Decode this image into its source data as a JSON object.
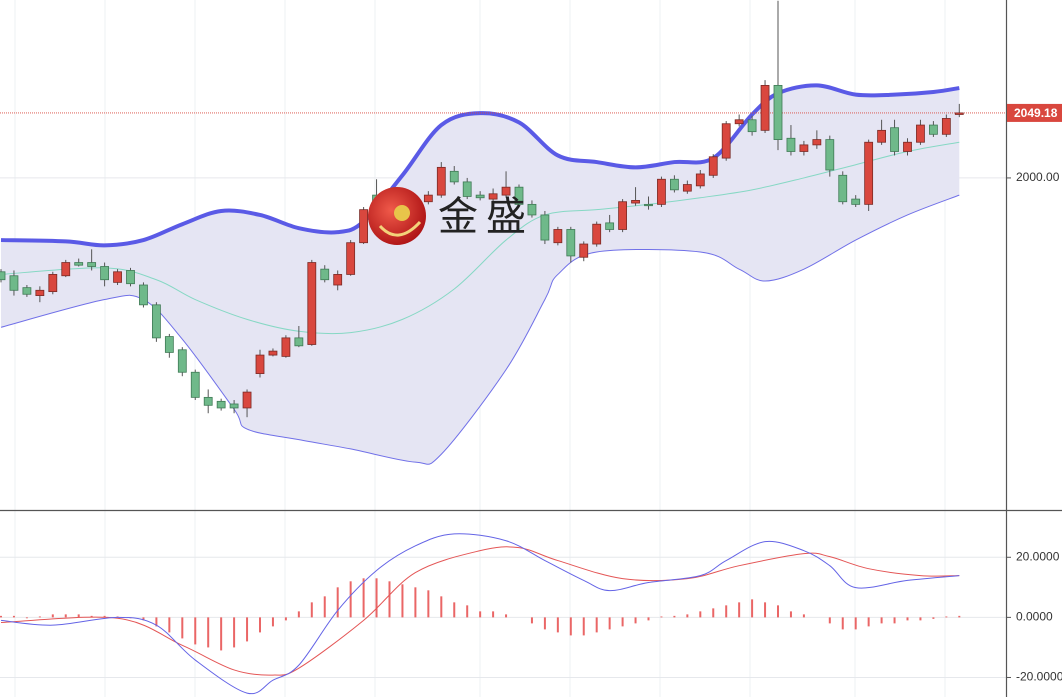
{
  "watermark": "金盛",
  "chart_data": [
    {
      "type": "candlestick",
      "candles": {
        "open": [
          1929,
          1926,
          1917,
          1911,
          1914,
          1926,
          1936,
          1936,
          1933,
          1921,
          1930,
          1919,
          1904,
          1880,
          1870,
          1853,
          1834,
          1831,
          1829,
          1826,
          1852,
          1866,
          1865,
          1879,
          1874,
          1931,
          1919,
          1927,
          1951,
          1987,
          1975,
          1978,
          1973,
          1982,
          1987,
          2005,
          1997,
          1987,
          1984,
          1987,
          1993,
          1980,
          1972,
          1951,
          1961,
          1940,
          1950,
          1966,
          1961,
          1981,
          1980,
          1980,
          1999,
          1990,
          1994,
          2002,
          2015,
          2041,
          2044,
          2036,
          2070,
          2030,
          2020,
          2025,
          2029,
          2002,
          1984,
          1980,
          2027,
          2038,
          2020,
          2027,
          2040,
          2033,
          2048
        ],
        "high": [
          1931,
          1930,
          1919,
          1918,
          1929,
          1938,
          1939,
          1946,
          1936,
          1931,
          1932,
          1921,
          1906,
          1882,
          1872,
          1855,
          1840,
          1833,
          1832,
          1840,
          1870,
          1871,
          1881,
          1888,
          1938,
          1934,
          1930,
          1953,
          1978,
          1999,
          1984,
          1983,
          1986,
          1990,
          2012,
          2009,
          2000,
          1990,
          1992,
          2005,
          1995,
          1983,
          1975,
          1963,
          1963,
          1952,
          1967,
          1972,
          1984,
          1993,
          1986,
          2001,
          2002,
          1998,
          2006,
          2018,
          2043,
          2048,
          2047,
          2074,
          2134,
          2040,
          2028,
          2036,
          2032,
          2005,
          1987,
          2029,
          2044,
          2044,
          2030,
          2044,
          2043,
          2048,
          2056
        ],
        "low": [
          1921,
          1911,
          1910,
          1906,
          1912,
          1925,
          1933,
          1930,
          1918,
          1919,
          1918,
          1902,
          1876,
          1864,
          1850,
          1832,
          1822,
          1824,
          1822,
          1819,
          1849,
          1865,
          1864,
          1872,
          1873,
          1921,
          1915,
          1926,
          1950,
          1972,
          1973,
          1976,
          1971,
          1980,
          1985,
          1995,
          1984,
          1983,
          1982,
          1985,
          1978,
          1970,
          1950,
          1949,
          1936,
          1937,
          1948,
          1959,
          1959,
          1979,
          1976,
          1978,
          1989,
          1988,
          1992,
          2000,
          2013,
          2039,
          2032,
          2034,
          2021,
          2017,
          2017,
          2022,
          2001,
          1980,
          1978,
          1975,
          2025,
          2017,
          2017,
          2025,
          2031,
          2031,
          2046
        ],
        "close": [
          1923,
          1915,
          1912,
          1915,
          1927,
          1936,
          1934,
          1933,
          1923,
          1929,
          1920,
          1904,
          1879,
          1868,
          1853,
          1834,
          1828,
          1826,
          1826,
          1838,
          1866,
          1869,
          1879,
          1873,
          1936,
          1923,
          1927,
          1951,
          1976,
          1975,
          1981,
          1981,
          1984,
          1987,
          2008,
          1997,
          1986,
          1985,
          1988,
          1993,
          1980,
          1972,
          1953,
          1961,
          1941,
          1950,
          1965,
          1961,
          1982,
          1983,
          1979,
          1999,
          1991,
          1995,
          2003,
          2016,
          2041,
          2044,
          2035,
          2070,
          2029,
          2020,
          2025,
          2029,
          2006,
          1982,
          1980,
          2027,
          2036,
          2020,
          2027,
          2040,
          2033,
          2045,
          2049.18
        ]
      },
      "bands": {
        "upper": {
          "x": [
            0,
            5,
            8,
            11,
            14,
            17,
            20,
            23,
            26,
            28,
            31,
            34,
            37,
            40,
            43,
            46,
            49,
            52,
            55,
            58,
            60,
            63,
            66,
            69,
            72,
            74
          ],
          "values": [
            1953,
            1952,
            1949,
            1953,
            1965,
            1975,
            1972,
            1962,
            1959,
            1967,
            2002,
            2040,
            2049,
            2042,
            2017,
            2012,
            2008,
            2012,
            2015,
            2048,
            2064,
            2070,
            2063,
            2063,
            2065,
            2068
          ],
          "color": "#5a5ae6"
        },
        "middle": {
          "x": [
            0,
            8,
            12,
            15,
            19,
            23,
            27,
            31,
            35,
            39,
            42,
            46,
            50,
            54,
            58,
            62,
            66,
            70,
            74
          ],
          "values": [
            1927,
            1932,
            1923,
            1908,
            1893,
            1884,
            1883,
            1893,
            1916,
            1953,
            1972,
            1976,
            1980,
            1985,
            1991,
            2000,
            2010,
            2020,
            2027
          ],
          "color": "#86d8c4"
        },
        "lower": {
          "x": [
            0,
            8,
            11,
            14,
            18,
            19,
            23,
            27,
            32,
            34,
            39,
            42,
            43,
            46,
            54,
            57,
            59,
            62,
            66,
            70,
            74
          ],
          "values": [
            1887,
            1908,
            1908,
            1878,
            1825,
            1810,
            1802,
            1795,
            1785,
            1791,
            1855,
            1908,
            1927,
            1944,
            1944,
            1931,
            1922,
            1931,
            1953,
            1972,
            1987
          ],
          "color": "#7070e8"
        }
      },
      "up_color": "#d9473e",
      "down_color": "#6fb98a",
      "band_fill": "#e5e5f3",
      "ylim": [
        1748.8,
        2134.6
      ],
      "yticks": [
        {
          "value": 2000,
          "label": "2000.00"
        }
      ],
      "last_price": {
        "value": 2049.18,
        "label": "2049.18"
      }
    },
    {
      "type": "macd",
      "dif": {
        "x": [
          0,
          4,
          9,
          12,
          15,
          19,
          21,
          23,
          26,
          29,
          32,
          35,
          39,
          42,
          45,
          47,
          50,
          54,
          56,
          59,
          62,
          64,
          66,
          70,
          74
        ],
        "values": [
          -1.0,
          -2.6,
          0,
          -2.6,
          -14.2,
          -25.2,
          -20.9,
          -15.9,
          2.3,
          15.6,
          23.8,
          27.8,
          25.5,
          18.9,
          12.3,
          8.9,
          11.6,
          13.9,
          18.9,
          25.2,
          22.2,
          17.2,
          9.9,
          12.3,
          13.9
        ],
        "color": "#6464e6"
      },
      "dea": {
        "x": [
          0,
          9,
          14,
          18,
          21,
          23,
          28,
          32,
          37,
          40,
          43,
          48,
          53,
          57,
          62,
          64,
          67,
          71,
          74
        ],
        "values": [
          -1.7,
          -0.3,
          -9.3,
          -17.5,
          -19.2,
          -16.9,
          -1.0,
          14.9,
          22.2,
          23.2,
          18.9,
          12.9,
          12.9,
          17.2,
          21.2,
          20.2,
          16.2,
          13.9,
          13.9
        ],
        "color": "#e45656"
      },
      "histogram": [
        0.5,
        0.5,
        -0.3,
        0.3,
        1,
        1,
        1,
        0.5,
        0.5,
        0.3,
        -0.3,
        -1,
        -3,
        -5,
        -7,
        -9,
        -10,
        -11,
        -10,
        -8,
        -5,
        -3,
        -1,
        2,
        5,
        7,
        10,
        12,
        13,
        13,
        12,
        11,
        10,
        9,
        7,
        5,
        4,
        2,
        2,
        1,
        0,
        -2,
        -4,
        -5,
        -6,
        -6,
        -5,
        -4,
        -3,
        -2,
        -1,
        0.3,
        0.5,
        1,
        2,
        3,
        4,
        5,
        6,
        5,
        4,
        2,
        1,
        0,
        -2,
        -4,
        -4,
        -3,
        -2,
        -2,
        -1,
        -1,
        -0.5,
        0.3,
        0.5
      ],
      "histogram_color": "#ea6666",
      "ylim": [
        -26.5,
        35.4
      ],
      "yticks": [
        {
          "value": 20,
          "label": "20.0000"
        },
        {
          "value": 0,
          "label": "0.0000"
        },
        {
          "value": -20,
          "label": "-20.0000"
        }
      ]
    }
  ]
}
